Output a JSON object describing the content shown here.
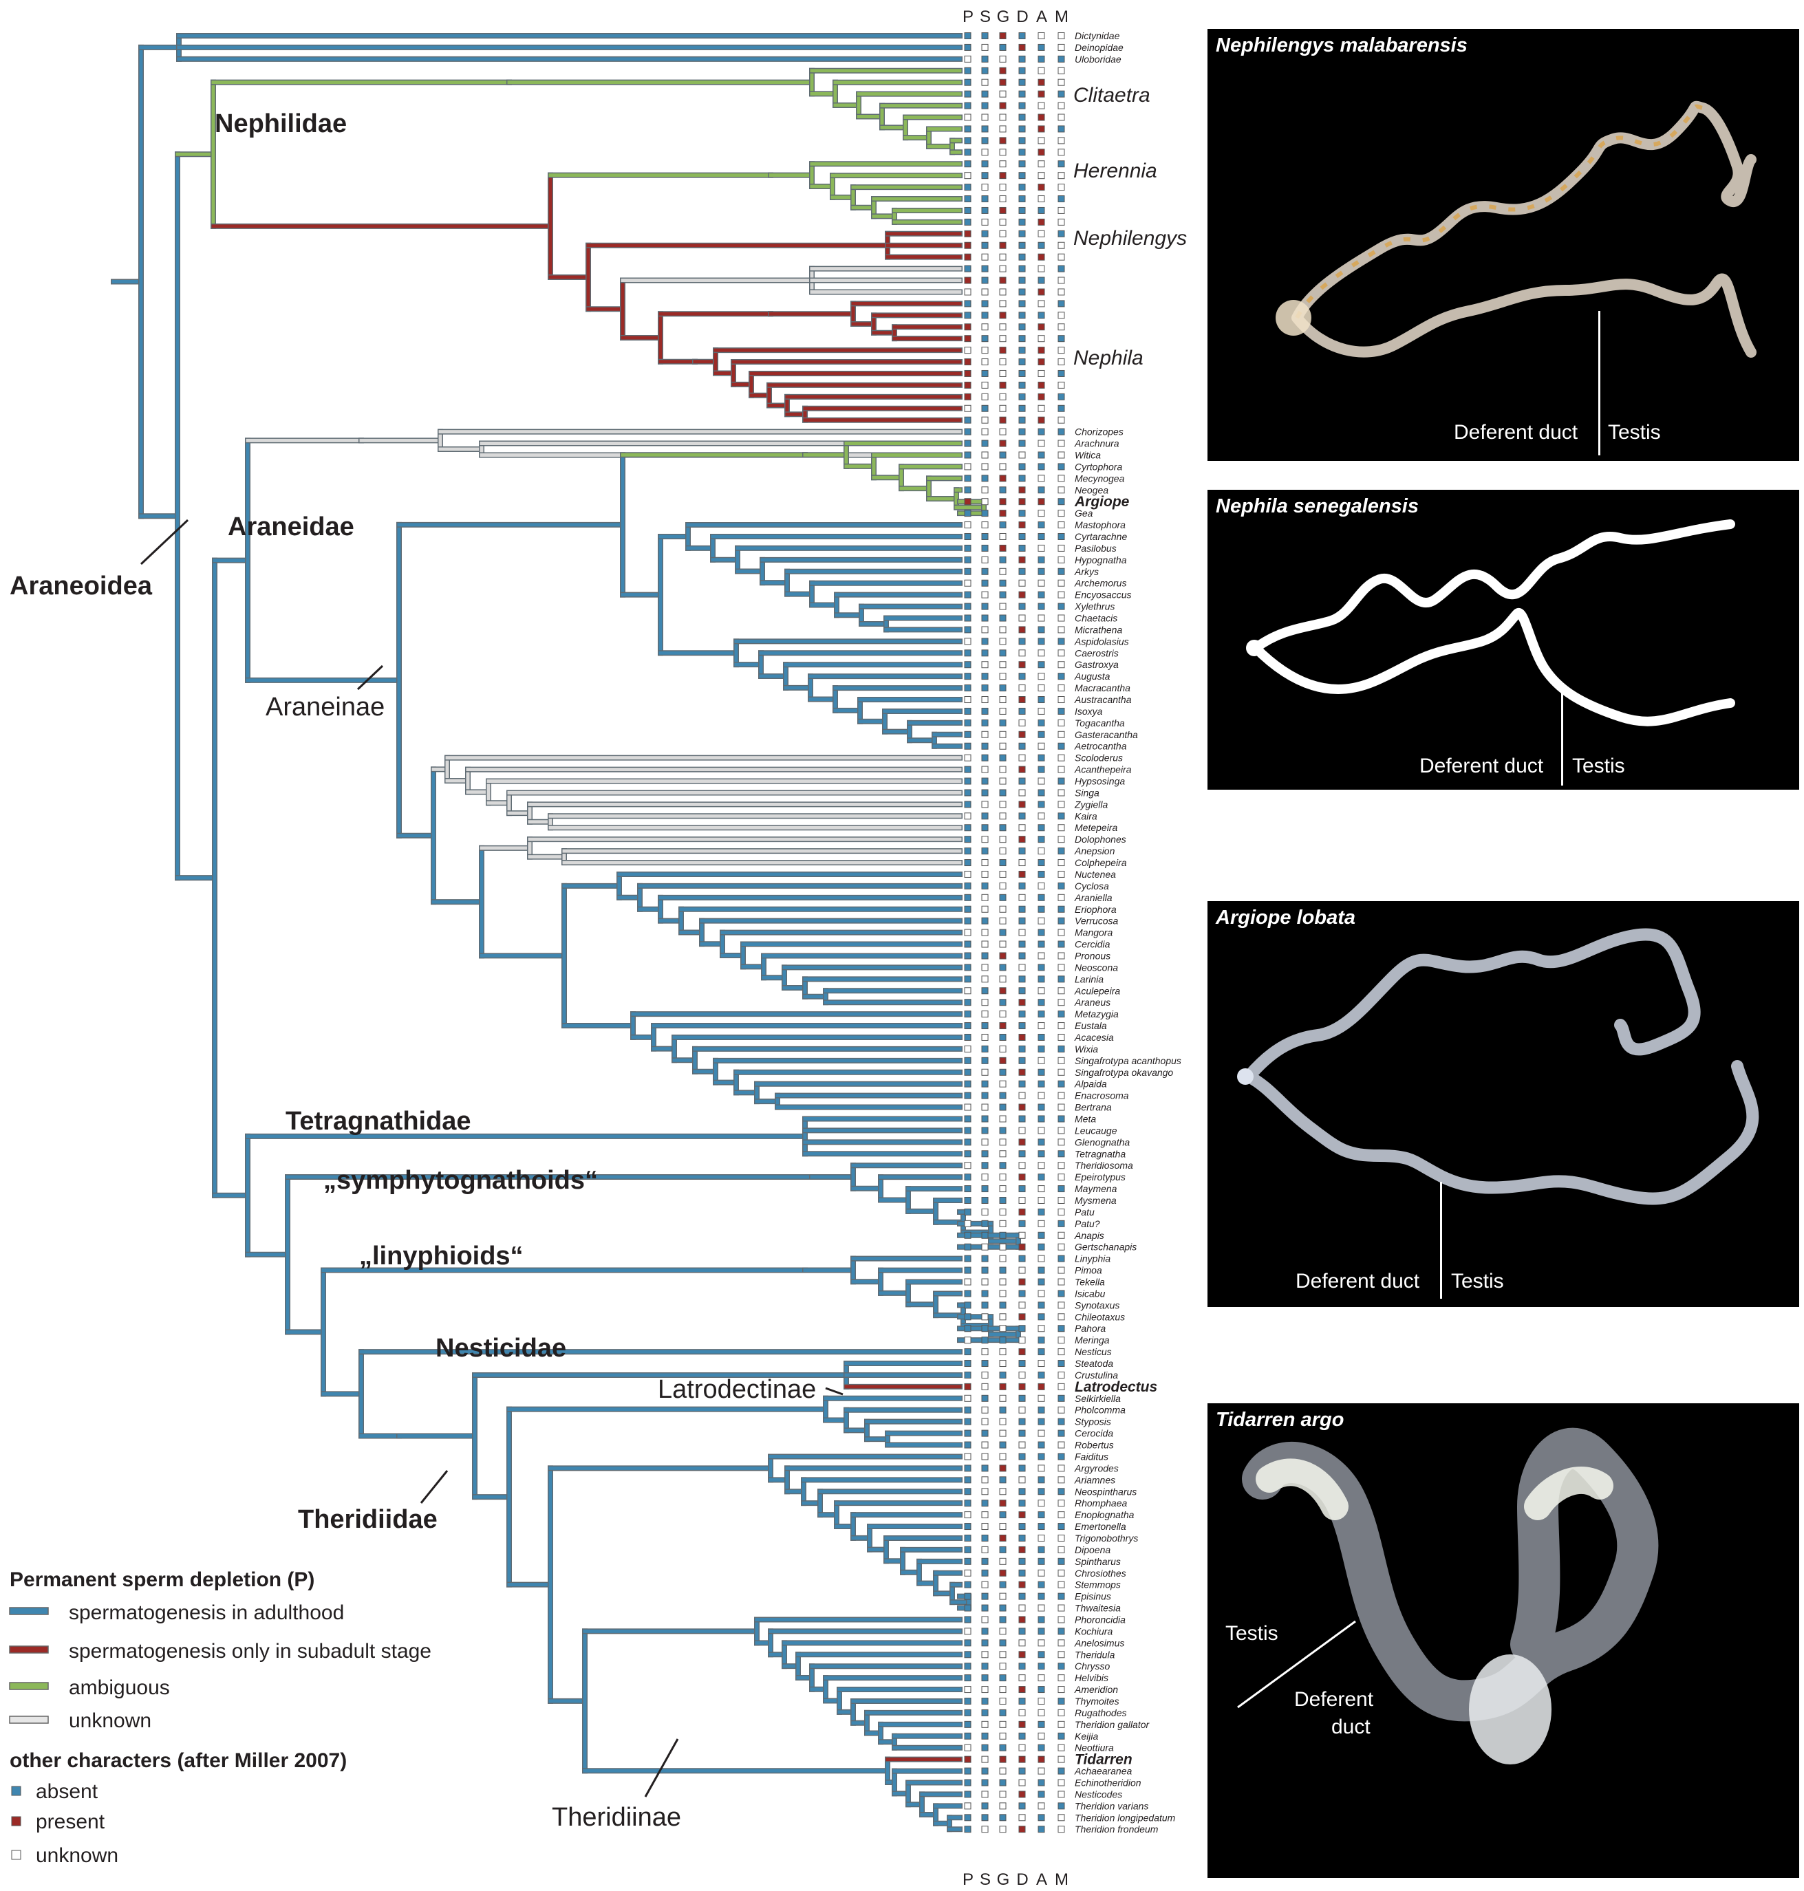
{
  "colors": {
    "absent": "#3f86b0",
    "present": "#9b2a26",
    "ambiguous": "#8cb85a",
    "unknown": "#d9d9d9",
    "outline": "#666666",
    "panel_bg": "#000000"
  },
  "columns_header": [
    "P",
    "S",
    "G",
    "D",
    "A",
    "M"
  ],
  "clade_labels": {
    "nephilidae": "Nephilidae",
    "araneidae": "Araneidae",
    "araneoidea": "Araneoidea",
    "araneinae": "Araneinae",
    "tetragnathidae": "Tetragnathidae",
    "symphytognathoids": "„symphytognathoids“",
    "linyphioids": "„linyphioids“",
    "nesticidae": "Nesticidae",
    "latrodectinae": "Latrodectinae",
    "theridiidae": "Theridiidae",
    "theridiinae": "Theridiinae"
  },
  "genus_labels": {
    "clitaetra": "Clitaetra",
    "herennia": "Herennia",
    "nephilengys": "Nephilengys",
    "nephila": "Nephila"
  },
  "taxa": [
    {
      "row": 0,
      "name": "Dictynidae"
    },
    {
      "row": 1,
      "name": "Deinopidae"
    },
    {
      "row": 2,
      "name": "Uloboridae"
    },
    {
      "row": 34,
      "name": "Chorizopes"
    },
    {
      "row": 35,
      "name": "Arachnura"
    },
    {
      "row": 36,
      "name": "Witica"
    },
    {
      "row": 37,
      "name": "Cyrtophora"
    },
    {
      "row": 38,
      "name": "Mecynogea"
    },
    {
      "row": 39,
      "name": "Neogea"
    },
    {
      "row": 40,
      "name": "Argiope",
      "bold": true
    },
    {
      "row": 41,
      "name": "Gea"
    },
    {
      "row": 42,
      "name": "Mastophora"
    },
    {
      "row": 43,
      "name": "Cyrtarachne"
    },
    {
      "row": 44,
      "name": "Pasilobus"
    },
    {
      "row": 45,
      "name": "Hypognatha"
    },
    {
      "row": 46,
      "name": "Arkys"
    },
    {
      "row": 47,
      "name": "Archemorus"
    },
    {
      "row": 48,
      "name": "Encyosaccus"
    },
    {
      "row": 49,
      "name": "Xylethrus"
    },
    {
      "row": 50,
      "name": "Chaetacis"
    },
    {
      "row": 51,
      "name": "Micrathena"
    },
    {
      "row": 52,
      "name": "Aspidolasius"
    },
    {
      "row": 53,
      "name": "Caerostris"
    },
    {
      "row": 54,
      "name": "Gastroxya"
    },
    {
      "row": 55,
      "name": "Augusta"
    },
    {
      "row": 56,
      "name": "Macracantha"
    },
    {
      "row": 57,
      "name": "Austracantha"
    },
    {
      "row": 58,
      "name": "Isoxya"
    },
    {
      "row": 59,
      "name": "Togacantha"
    },
    {
      "row": 60,
      "name": "Gasteracantha"
    },
    {
      "row": 61,
      "name": "Aetrocantha"
    },
    {
      "row": 62,
      "name": "Scoloderus"
    },
    {
      "row": 63,
      "name": "Acanthepeira"
    },
    {
      "row": 64,
      "name": "Hypsosinga"
    },
    {
      "row": 65,
      "name": "Singa"
    },
    {
      "row": 66,
      "name": "Zygiella"
    },
    {
      "row": 67,
      "name": "Kaira"
    },
    {
      "row": 68,
      "name": "Metepeira"
    },
    {
      "row": 69,
      "name": "Dolophones"
    },
    {
      "row": 70,
      "name": "Anepsion"
    },
    {
      "row": 71,
      "name": "Colphepeira"
    },
    {
      "row": 72,
      "name": "Nuctenea"
    },
    {
      "row": 73,
      "name": "Cyclosa"
    },
    {
      "row": 74,
      "name": "Araniella"
    },
    {
      "row": 75,
      "name": "Eriophora"
    },
    {
      "row": 76,
      "name": "Verrucosa"
    },
    {
      "row": 77,
      "name": "Mangora"
    },
    {
      "row": 78,
      "name": "Cercidia"
    },
    {
      "row": 79,
      "name": "Pronous"
    },
    {
      "row": 80,
      "name": "Neoscona"
    },
    {
      "row": 81,
      "name": "Larinia"
    },
    {
      "row": 82,
      "name": "Aculepeira"
    },
    {
      "row": 83,
      "name": "Araneus"
    },
    {
      "row": 84,
      "name": "Metazygia"
    },
    {
      "row": 85,
      "name": "Eustala"
    },
    {
      "row": 86,
      "name": "Acacesia"
    },
    {
      "row": 87,
      "name": "Wixia"
    },
    {
      "row": 88,
      "name": "Singafrotypa acanthopus"
    },
    {
      "row": 89,
      "name": "Singafrotypa okavango"
    },
    {
      "row": 90,
      "name": "Alpaida"
    },
    {
      "row": 91,
      "name": "Enacrosoma"
    },
    {
      "row": 92,
      "name": "Bertrana"
    },
    {
      "row": 93,
      "name": "Meta"
    },
    {
      "row": 94,
      "name": "Leucauge"
    },
    {
      "row": 95,
      "name": "Glenognatha"
    },
    {
      "row": 96,
      "name": "Tetragnatha"
    },
    {
      "row": 97,
      "name": "Theridiosoma"
    },
    {
      "row": 98,
      "name": "Epeirotypus"
    },
    {
      "row": 99,
      "name": "Maymena"
    },
    {
      "row": 100,
      "name": "Mysmena"
    },
    {
      "row": 101,
      "name": "Patu"
    },
    {
      "row": 102,
      "name": "Patu?"
    },
    {
      "row": 103,
      "name": "Anapis"
    },
    {
      "row": 104,
      "name": "Gertschanapis"
    },
    {
      "row": 105,
      "name": "Linyphia"
    },
    {
      "row": 106,
      "name": "Pimoa"
    },
    {
      "row": 107,
      "name": "Tekella"
    },
    {
      "row": 108,
      "name": "Isicabu"
    },
    {
      "row": 109,
      "name": "Synotaxus"
    },
    {
      "row": 110,
      "name": "Chileotaxus"
    },
    {
      "row": 111,
      "name": "Pahora"
    },
    {
      "row": 112,
      "name": "Meringa"
    },
    {
      "row": 113,
      "name": "Nesticus"
    },
    {
      "row": 114,
      "name": "Steatoda"
    },
    {
      "row": 115,
      "name": "Crustulina"
    },
    {
      "row": 116,
      "name": "Latrodectus",
      "bold": true
    },
    {
      "row": 117,
      "name": "Selkirkiella"
    },
    {
      "row": 118,
      "name": "Pholcomma"
    },
    {
      "row": 119,
      "name": "Styposis"
    },
    {
      "row": 120,
      "name": "Cerocida"
    },
    {
      "row": 121,
      "name": "Robertus"
    },
    {
      "row": 122,
      "name": "Faiditus"
    },
    {
      "row": 123,
      "name": "Argyrodes"
    },
    {
      "row": 124,
      "name": "Ariamnes"
    },
    {
      "row": 125,
      "name": "Neospintharus"
    },
    {
      "row": 126,
      "name": "Rhomphaea"
    },
    {
      "row": 127,
      "name": "Enoplognatha"
    },
    {
      "row": 128,
      "name": "Emertonella"
    },
    {
      "row": 129,
      "name": "Trigonobothrys"
    },
    {
      "row": 130,
      "name": "Dipoena"
    },
    {
      "row": 131,
      "name": "Spintharus"
    },
    {
      "row": 132,
      "name": "Chrosiothes"
    },
    {
      "row": 133,
      "name": "Stemmops"
    },
    {
      "row": 134,
      "name": "Episinus"
    },
    {
      "row": 135,
      "name": "Thwaitesia"
    },
    {
      "row": 136,
      "name": "Phoroncidia"
    },
    {
      "row": 137,
      "name": "Kochiura"
    },
    {
      "row": 138,
      "name": "Anelosimus"
    },
    {
      "row": 139,
      "name": "Theridula"
    },
    {
      "row": 140,
      "name": "Chrysso"
    },
    {
      "row": 141,
      "name": "Helvibis"
    },
    {
      "row": 142,
      "name": "Ameridion"
    },
    {
      "row": 143,
      "name": "Thymoites"
    },
    {
      "row": 144,
      "name": "Rugathodes"
    },
    {
      "row": 145,
      "name": "Theridion gallator"
    },
    {
      "row": 146,
      "name": "Keijia"
    },
    {
      "row": 147,
      "name": "Neottiura"
    },
    {
      "row": 148,
      "name": "Tidarren",
      "bold": true
    },
    {
      "row": 149,
      "name": "Achaearanea"
    },
    {
      "row": 150,
      "name": "Echinotheridion"
    },
    {
      "row": 151,
      "name": "Nesticodes"
    },
    {
      "row": 152,
      "name": "Theridion  varians"
    },
    {
      "row": 153,
      "name": "Theridion longipedatum"
    },
    {
      "row": 154,
      "name": "Theridion frondeum"
    }
  ],
  "legend": {
    "title1": "Permanent sperm depletion (P)",
    "items1": [
      {
        "key": "absent",
        "label": "spermatogenesis in adulthood"
      },
      {
        "key": "present",
        "label": "spermatogenesis only in subadult stage"
      },
      {
        "key": "ambiguous",
        "label": "ambiguous"
      },
      {
        "key": "unknown",
        "label": "unknown"
      }
    ],
    "title2": "other characters (after Miller 2007)",
    "items2": [
      {
        "key": "absent",
        "label": "absent"
      },
      {
        "key": "present",
        "label": "present"
      },
      {
        "key": "unknown",
        "label": "unknown"
      }
    ]
  },
  "panels": [
    {
      "title": "Nephilengys malabarensis",
      "label_left": "Deferent duct",
      "label_right": "Testis"
    },
    {
      "title": "Nephila senegalensis",
      "label_left": "Deferent duct",
      "label_right": "Testis"
    },
    {
      "title": "Argiope lobata",
      "label_left": "Deferent duct",
      "label_right": "Testis"
    },
    {
      "title": "Tidarren argo",
      "label_testis": "Testis",
      "label_duct_1": "Deferent",
      "label_duct_2": "duct"
    }
  ]
}
